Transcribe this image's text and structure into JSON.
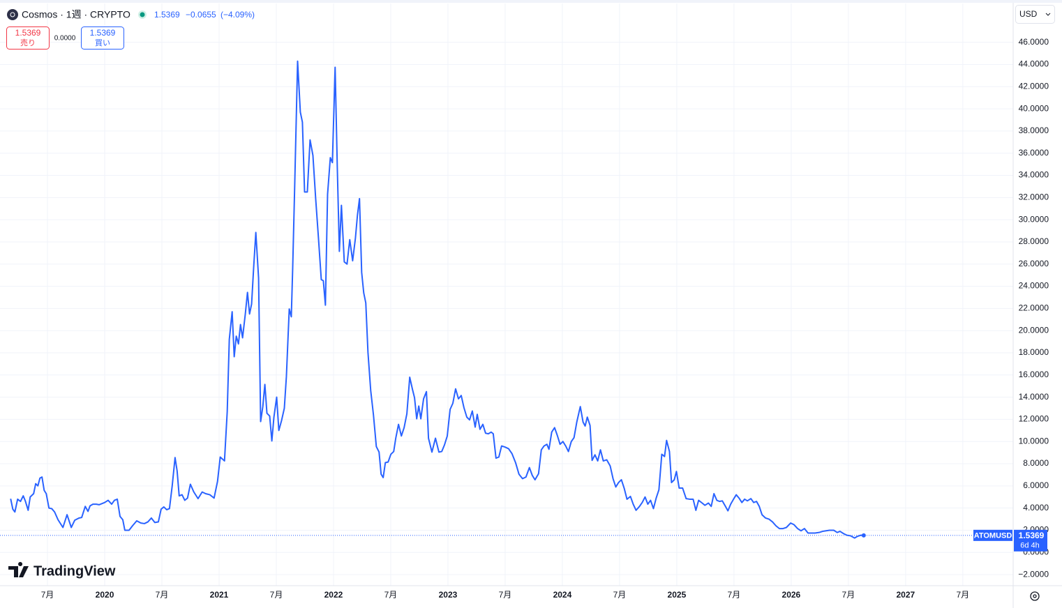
{
  "header": {
    "symbol": "Cosmos · 1週 · CRYPTO",
    "last": "1.5369",
    "change": "−0.0655",
    "change_pct": "(−4.09%)"
  },
  "trade": {
    "sell_price": "1.5369",
    "sell_label": "売り",
    "spread": "0.0000",
    "buy_price": "1.5369",
    "buy_label": "買い"
  },
  "currency": "USD",
  "brand": "TradingView",
  "price_label": {
    "countdown": "6d 4h"
  },
  "chart_data": {
    "type": "line",
    "x": [
      2019.178,
      2019.197,
      2019.215,
      2019.239,
      2019.264,
      2019.288,
      2019.306,
      2019.331,
      2019.349,
      2019.379,
      2019.397,
      2019.416,
      2019.434,
      2019.452,
      2019.471,
      2019.489,
      2019.513,
      2019.537,
      2019.562,
      2019.592,
      2019.635,
      2019.671,
      2019.708,
      2019.738,
      2019.775,
      2019.799,
      2019.83,
      2019.854,
      2019.872,
      2019.897,
      2019.927,
      2019.951,
      2020.0,
      2020.03,
      2020.061,
      2020.085,
      2020.11,
      2020.134,
      2020.158,
      2020.176,
      2020.213,
      2020.243,
      2020.28,
      2020.316,
      2020.347,
      2020.377,
      2020.408,
      2020.438,
      2020.469,
      2020.493,
      2020.517,
      2020.542,
      2020.566,
      2020.59,
      2020.615,
      2020.633,
      2020.651,
      2020.676,
      2020.7,
      2020.724,
      2020.749,
      2020.779,
      2020.816,
      2020.852,
      2020.882,
      2020.919,
      2020.956,
      2020.986,
      2021.01,
      2021.047,
      2021.071,
      2021.089,
      2021.114,
      2021.132,
      2021.15,
      2021.169,
      2021.187,
      2021.205,
      2021.229,
      2021.248,
      2021.266,
      2021.284,
      2021.302,
      2021.321,
      2021.345,
      2021.363,
      2021.382,
      2021.4,
      2021.418,
      2021.442,
      2021.461,
      2021.479,
      2021.503,
      2021.522,
      2021.546,
      2021.57,
      2021.588,
      2021.613,
      2021.631,
      2021.643,
      2021.661,
      2021.686,
      2021.71,
      2021.728,
      2021.747,
      2021.771,
      2021.795,
      2021.82,
      2021.844,
      2021.868,
      2021.893,
      2021.911,
      2021.929,
      2021.948,
      2021.972,
      2021.99,
      2022.014,
      2022.033,
      2022.051,
      2022.069,
      2022.094,
      2022.118,
      2022.142,
      2022.167,
      2022.191,
      2022.209,
      2022.227,
      2022.246,
      2022.264,
      2022.282,
      2022.301,
      2022.325,
      2022.349,
      2022.374,
      2022.398,
      2022.416,
      2022.434,
      2022.453,
      2022.477,
      2022.501,
      2022.526,
      2022.544,
      2022.568,
      2022.593,
      2022.617,
      2022.641,
      2022.666,
      2022.69,
      2022.708,
      2022.727,
      2022.745,
      2022.763,
      2022.787,
      2022.812,
      2022.83,
      2022.86,
      2022.891,
      2022.921,
      2022.946,
      2022.97,
      2022.994,
      2023.019,
      2023.043,
      2023.067,
      2023.092,
      2023.116,
      2023.14,
      2023.165,
      2023.189,
      2023.213,
      2023.238,
      2023.256,
      2023.28,
      2023.305,
      2023.329,
      2023.353,
      2023.378,
      2023.396,
      2023.42,
      2023.445,
      2023.469,
      2023.499,
      2023.53,
      2023.56,
      2023.591,
      2023.621,
      2023.652,
      2023.682,
      2023.712,
      2023.737,
      2023.761,
      2023.792,
      2023.816,
      2023.84,
      2023.865,
      2023.883,
      2023.907,
      2023.932,
      2023.956,
      2023.98,
      2024.005,
      2024.029,
      2024.053,
      2024.078,
      2024.102,
      2024.126,
      2024.157,
      2024.181,
      2024.199,
      2024.218,
      2024.242,
      2024.26,
      2024.285,
      2024.309,
      2024.333,
      2024.358,
      2024.388,
      2024.418,
      2024.443,
      2024.467,
      2024.491,
      2024.516,
      2024.54,
      2024.565,
      2024.595,
      2024.619,
      2024.644,
      2024.674,
      2024.698,
      2024.723,
      2024.747,
      2024.771,
      2024.796,
      2024.82,
      2024.844,
      2024.869,
      2024.893,
      2024.911,
      2024.936,
      2024.954,
      2024.978,
      2024.997,
      2025.021,
      2025.051,
      2025.082,
      2025.112,
      2025.143,
      2025.167,
      2025.191,
      2025.222,
      2025.246,
      2025.277,
      2025.301,
      2025.325,
      2025.35,
      2025.374,
      2025.398,
      2025.423,
      2025.447,
      2025.471,
      2025.496,
      2025.52,
      2025.544,
      2025.569,
      2025.593,
      2025.617,
      2025.648,
      2025.672,
      2025.697,
      2025.721,
      2025.745,
      2025.776,
      2025.806,
      2025.837,
      2025.867,
      2025.897,
      2025.928,
      2025.958,
      2025.995,
      2026.025,
      2026.056,
      2026.086,
      2026.116,
      2026.147,
      2026.177,
      2026.208,
      2026.244,
      2026.275,
      2026.305,
      2026.335,
      2026.372,
      2026.402,
      2026.427,
      2026.457,
      2026.487,
      2026.518,
      2026.554,
      2026.579,
      2026.609,
      2026.634
    ],
    "series": [
      {
        "name": "ATOMUSD",
        "color": "#2962ff",
        "values": [
          4.84,
          3.9,
          3.65,
          4.8,
          4.6,
          5.1,
          4.65,
          3.8,
          5.0,
          5.3,
          6.2,
          6.0,
          6.7,
          6.8,
          5.6,
          5.3,
          4.0,
          3.95,
          3.65,
          2.95,
          2.25,
          3.4,
          2.25,
          2.9,
          3.1,
          3.15,
          4.15,
          3.7,
          4.2,
          4.35,
          4.35,
          4.3,
          4.5,
          4.7,
          4.35,
          4.7,
          4.8,
          3.25,
          2.95,
          2.0,
          2.0,
          2.4,
          2.85,
          2.65,
          2.6,
          2.75,
          3.1,
          2.7,
          2.75,
          3.9,
          4.1,
          3.85,
          3.95,
          6.0,
          8.55,
          7.35,
          5.1,
          5.2,
          4.7,
          4.9,
          6.15,
          5.45,
          4.85,
          5.45,
          5.3,
          5.2,
          4.9,
          6.4,
          8.6,
          8.25,
          12.7,
          19.2,
          21.7,
          17.65,
          19.5,
          18.8,
          20.55,
          19.35,
          21.5,
          23.45,
          21.5,
          22.4,
          25.7,
          28.85,
          24.75,
          11.8,
          13.15,
          15.15,
          12.55,
          12.3,
          10.05,
          12.2,
          14.0,
          11.0,
          11.9,
          13.0,
          15.85,
          21.95,
          21.25,
          25.6,
          33.2,
          44.3,
          39.7,
          38.8,
          32.5,
          32.5,
          37.2,
          35.8,
          31.9,
          28.4,
          24.6,
          24.5,
          22.3,
          32.3,
          35.6,
          35.15,
          43.75,
          34.7,
          27.15,
          31.3,
          26.2,
          26.0,
          28.2,
          26.3,
          28.3,
          30.4,
          31.9,
          25.25,
          23.4,
          22.5,
          18.05,
          14.6,
          12.4,
          9.55,
          9.05,
          7.05,
          6.75,
          8.1,
          8.15,
          8.85,
          9.1,
          10.3,
          11.55,
          10.5,
          11.25,
          12.5,
          15.8,
          14.7,
          13.95,
          12.05,
          13.2,
          12.05,
          13.85,
          14.5,
          10.3,
          9.05,
          10.3,
          9.05,
          9.1,
          9.7,
          10.5,
          12.9,
          13.45,
          14.75,
          13.85,
          14.15,
          13.05,
          12.2,
          11.95,
          12.75,
          11.3,
          12.45,
          11.1,
          11.55,
          10.75,
          10.7,
          10.85,
          10.7,
          8.5,
          8.6,
          9.6,
          9.5,
          9.35,
          8.9,
          8.1,
          7.05,
          6.65,
          6.8,
          7.65,
          6.95,
          6.55,
          7.1,
          9.25,
          9.6,
          9.75,
          9.3,
          10.85,
          11.25,
          10.55,
          9.75,
          10.0,
          9.6,
          9.1,
          10.0,
          10.35,
          11.75,
          13.15,
          11.75,
          11.4,
          12.2,
          11.45,
          8.3,
          8.8,
          8.25,
          9.25,
          8.25,
          8.35,
          7.8,
          6.65,
          5.9,
          6.3,
          6.55,
          5.8,
          4.8,
          5.05,
          4.35,
          3.8,
          4.15,
          4.5,
          5.0,
          4.35,
          4.7,
          3.95,
          4.9,
          5.65,
          8.85,
          8.65,
          10.1,
          9.1,
          6.3,
          6.55,
          7.3,
          5.8,
          5.8,
          4.85,
          4.8,
          4.8,
          3.8,
          4.7,
          4.45,
          4.25,
          4.45,
          4.15,
          5.3,
          4.7,
          4.6,
          4.65,
          4.2,
          3.75,
          4.35,
          4.8,
          5.2,
          4.9,
          4.5,
          4.8,
          4.65,
          4.85,
          4.5,
          4.6,
          4.15,
          3.4,
          3.1,
          3.0,
          2.75,
          2.4,
          2.15,
          2.15,
          2.25,
          2.65,
          2.5,
          2.15,
          1.95,
          2.15,
          1.75,
          1.75,
          1.75,
          1.8,
          1.9,
          1.95,
          2.0,
          2.0,
          1.8,
          1.9,
          1.7,
          1.55,
          1.5,
          1.3,
          1.45,
          1.55,
          1.5369
        ]
      }
    ],
    "xlim": [
      2019.085,
      2027.94
    ],
    "xticks": [
      {
        "value": 2019.5,
        "label": "7月"
      },
      2020,
      {
        "value": 2020.5,
        "label": "7月"
      },
      2021,
      {
        "value": 2021.5,
        "label": "7月"
      },
      2022,
      {
        "value": 2022.5,
        "label": "7月"
      },
      2023,
      {
        "value": 2023.5,
        "label": "7月"
      },
      2024,
      {
        "value": 2024.5,
        "label": "7月"
      },
      2025,
      {
        "value": 2025.5,
        "label": "7月"
      },
      2026,
      {
        "value": 2026.5,
        "label": "7月"
      },
      2027,
      {
        "value": 2027.5,
        "label": "7月"
      }
    ],
    "ylim": [
      -3,
      49.5
    ],
    "yticks": [
      {
        "value": -2,
        "label": "−2.0000"
      },
      {
        "value": 0,
        "label": "0.0000"
      },
      {
        "value": 2,
        "label": "2.0000"
      },
      {
        "value": 4,
        "label": "4.0000"
      },
      {
        "value": 6,
        "label": "6.0000"
      },
      {
        "value": 8,
        "label": "8.0000"
      },
      {
        "value": 10,
        "label": "10.0000"
      },
      {
        "value": 12,
        "label": "12.0000"
      },
      {
        "value": 14,
        "label": "14.0000"
      },
      {
        "value": 16,
        "label": "16.0000"
      },
      {
        "value": 18,
        "label": "18.0000"
      },
      {
        "value": 20,
        "label": "20.0000"
      },
      {
        "value": 22,
        "label": "22.0000"
      },
      {
        "value": 24,
        "label": "24.0000"
      },
      {
        "value": 26,
        "label": "26.0000"
      },
      {
        "value": 28,
        "label": "28.0000"
      },
      {
        "value": 30,
        "label": "30.0000"
      },
      {
        "value": 32,
        "label": "32.0000"
      },
      {
        "value": 34,
        "label": "34.0000"
      },
      {
        "value": 36,
        "label": "36.0000"
      },
      {
        "value": 38,
        "label": "38.0000"
      },
      {
        "value": 40,
        "label": "40.0000"
      },
      {
        "value": 42,
        "label": "42.0000"
      },
      {
        "value": 44,
        "label": "44.0000"
      },
      {
        "value": 46,
        "label": "46.0000"
      }
    ],
    "grid": true
  }
}
